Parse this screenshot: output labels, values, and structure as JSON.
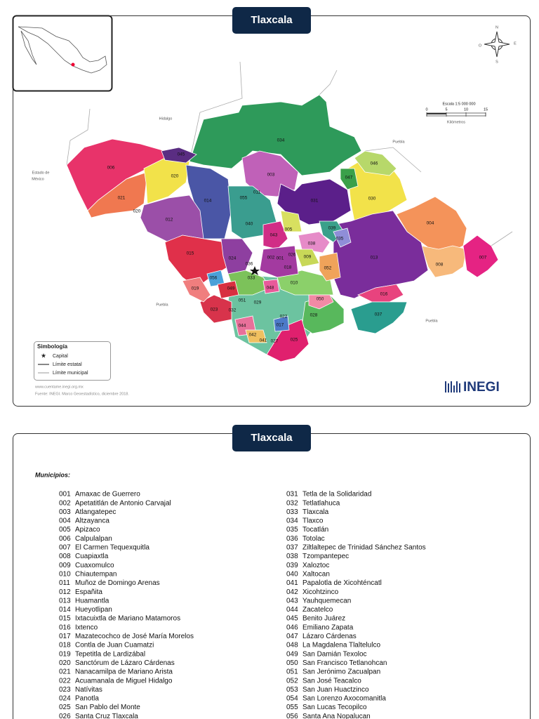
{
  "map_panel": {
    "title": "Tlaxcala",
    "scale": {
      "label": "Escala 1:5 000 000",
      "ticks": [
        "0",
        "5",
        "10",
        "15"
      ],
      "unit": "Kilómetros"
    },
    "compass": {
      "north": "N",
      "south": "S",
      "east": "E",
      "west": "O"
    },
    "neighbors": {
      "hidalgo": "Hidalgo",
      "mexico_line1": "Estado de",
      "mexico_line2": "México",
      "puebla_ne": "Puebla",
      "puebla_sw": "Puebla",
      "puebla_se": "Puebla"
    },
    "legend": {
      "title": "Simbología",
      "capital": "Capital",
      "state_limit": "Límite estatal",
      "municipal_limit": "Límite municipal"
    },
    "footer": {
      "url": "www.cuentame.inegi.org.mx",
      "source": "Fuente: INEGI. Marco Geoestadístico, diciembre 2018.",
      "logo": "INEGI"
    },
    "labels": [
      "034",
      "006",
      "045",
      "020",
      "021",
      "020",
      "003",
      "046",
      "047",
      "030",
      "014",
      "011",
      "055",
      "031",
      "012",
      "040",
      "039",
      "035",
      "004",
      "043",
      "005",
      "038",
      "015",
      "024",
      "036",
      "002",
      "001",
      "026",
      "009",
      "013",
      "008",
      "007",
      "018",
      "052",
      "033",
      "056",
      "019",
      "049",
      "010",
      "048",
      "016",
      "050",
      "023",
      "032",
      "051",
      "029",
      "037",
      "028",
      "022",
      "017",
      "044",
      "042",
      "041",
      "027",
      "025"
    ]
  },
  "list_panel": {
    "title": "Tlaxcala",
    "heading": "Municipios:",
    "left": [
      [
        "001",
        "Amaxac de Guerrero"
      ],
      [
        "002",
        "Apetatitlán de Antonio Carvajal"
      ],
      [
        "003",
        "Atlangatepec"
      ],
      [
        "004",
        "Altzayanca"
      ],
      [
        "005",
        "Apizaco"
      ],
      [
        "006",
        "Calpulalpan"
      ],
      [
        "007",
        "El Carmen Tequexquitla"
      ],
      [
        "008",
        "Cuapiaxtla"
      ],
      [
        "009",
        "Cuaxomulco"
      ],
      [
        "010",
        "Chiautempan"
      ],
      [
        "011",
        "Muñoz de Domingo Arenas"
      ],
      [
        "012",
        "Españita"
      ],
      [
        "013",
        "Huamantla"
      ],
      [
        "014",
        "Hueyotlipan"
      ],
      [
        "015",
        "Ixtacuixtla de Mariano Matamoros"
      ],
      [
        "016",
        "Ixtenco"
      ],
      [
        "017",
        "Mazatecochco de José María Morelos"
      ],
      [
        "018",
        "Contla de Juan Cuamatzi"
      ],
      [
        "019",
        "Tepetitla de Lardizábal"
      ],
      [
        "020",
        "Sanctórum de Lázaro Cárdenas"
      ],
      [
        "021",
        "Nanacamilpa de Mariano Arista"
      ],
      [
        "022",
        "Acuamanala de Miguel Hidalgo"
      ],
      [
        "023",
        "Natívitas"
      ],
      [
        "024",
        "Panotla"
      ],
      [
        "025",
        "San Pablo del Monte"
      ],
      [
        "026",
        "Santa Cruz Tlaxcala"
      ]
    ],
    "right": [
      [
        "031",
        "Tetla de la Solidaridad"
      ],
      [
        "032",
        "Tetlatlahuca"
      ],
      [
        "033",
        "Tlaxcala"
      ],
      [
        "034",
        "Tlaxco"
      ],
      [
        "035",
        "Tocatlán"
      ],
      [
        "036",
        "Totolac"
      ],
      [
        "037",
        "Ziltlaltepec de Trinidad Sánchez Santos"
      ],
      [
        "038",
        "Tzompantepec"
      ],
      [
        "039",
        "Xaloztoc"
      ],
      [
        "040",
        "Xaltocan"
      ],
      [
        "041",
        "Papalotla de Xicohténcatl"
      ],
      [
        "042",
        "Xicohtzinco"
      ],
      [
        "043",
        "Yauhquemecan"
      ],
      [
        "044",
        "Zacatelco"
      ],
      [
        "045",
        "Benito Juárez"
      ],
      [
        "046",
        "Emiliano Zapata"
      ],
      [
        "047",
        "Lázaro Cárdenas"
      ],
      [
        "048",
        "La Magdalena Tlaltelulco"
      ],
      [
        "049",
        "San Damián Texoloc"
      ],
      [
        "050",
        "San Francisco Tetlanohcan"
      ],
      [
        "051",
        "San Jerónimo Zacualpan"
      ],
      [
        "052",
        "San José Teacalco"
      ],
      [
        "053",
        "San Juan Huactzinco"
      ],
      [
        "054",
        "San Lorenzo Axocomanitla"
      ],
      [
        "055",
        "San Lucas Tecopilco"
      ],
      [
        "056",
        "Santa Ana Nopalucan"
      ]
    ]
  }
}
